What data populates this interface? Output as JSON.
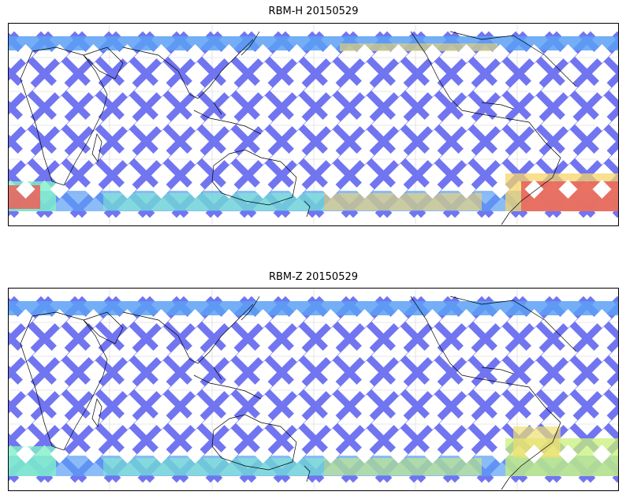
{
  "panels": [
    {
      "title": "RBM-H 20150529",
      "colors": {
        "mid": "#6a6ef0",
        "north": "#5aa0f5",
        "south_west": "#7ff0c8",
        "south_hot": "#e8665e",
        "south_warm": "#f5d66a"
      },
      "hot_band": true
    },
    {
      "title": "RBM-Z 20150529",
      "colors": {
        "mid": "#6a6ef0",
        "north": "#5aa0f5",
        "south_west": "#7ff0c8",
        "south_hot": "#f0e070",
        "south_warm": "#c8f07a"
      },
      "hot_band": false
    }
  ]
}
